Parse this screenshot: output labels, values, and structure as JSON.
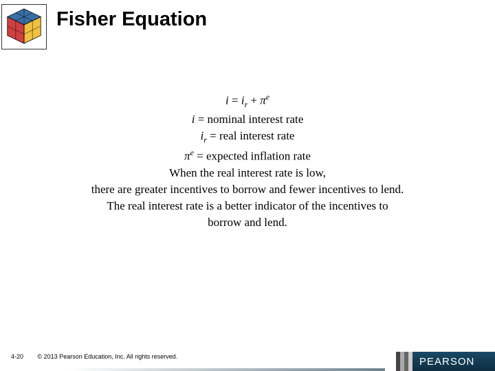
{
  "header": {
    "title": "Fisher Equation"
  },
  "content": {
    "lines": {
      "eq1_html": "<span class='it'>i</span> = <span class='it'>i</span><span class='sub'>r</span> + <span class='it'>π</span><span class='sup'>e</span>",
      "eq2_html": "<span class='it'>i</span> = nominal interest rate",
      "eq3_html": "<span class='it'>i</span><span class='sub'>r</span> = real interest rate",
      "eq4_html": "<span class='it'>π</span><span class='sup'>e</span> = expected inflation rate",
      "body1": "When the real interest rate is low,",
      "body2": "there are greater incentives to borrow and fewer incentives to lend.",
      "body3": "The real interest rate is a better indicator of the incentives to",
      "body4": "borrow and lend."
    },
    "fontsize_eq": 17,
    "fontsize_body": 17,
    "text_color": "#000000"
  },
  "footer": {
    "page_number": "4-20",
    "copyright": "© 2013 Pearson Education, Inc. All rights reserved.",
    "brand": "PEARSON",
    "brand_bg": "#0d2e42",
    "brand_text_color": "#ffffff"
  },
  "cube_logo": {
    "border_color": "#333333",
    "faces": [
      "#3a6ea5",
      "#f0c020",
      "#d03030",
      "#208040",
      "#ffffff",
      "#e08030"
    ]
  }
}
